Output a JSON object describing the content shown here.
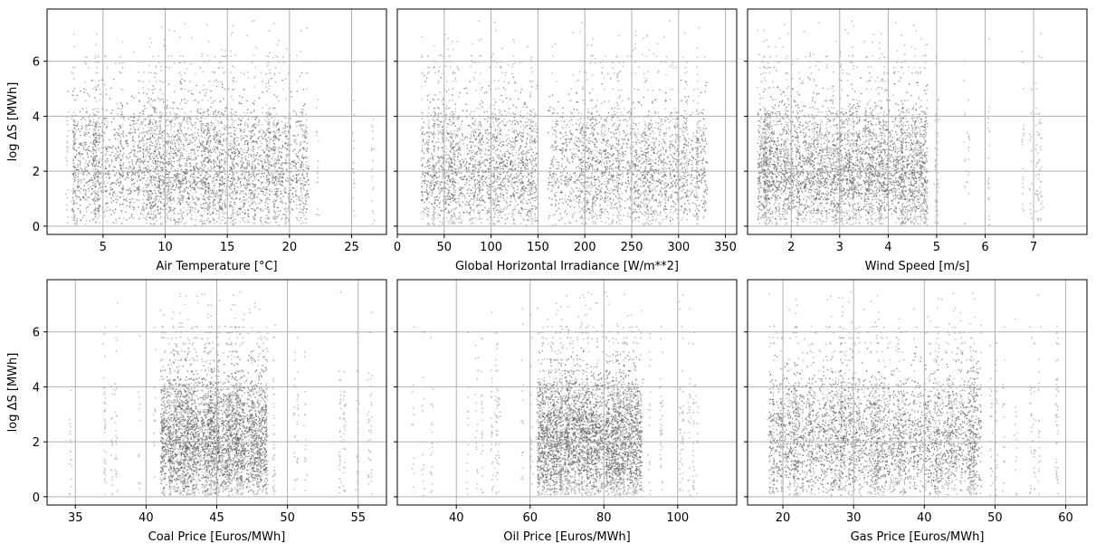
{
  "chart_data": [
    {
      "type": "scatter",
      "xlabel": "Air Temperature [°C]",
      "ylabel": "log ΔS [MWh]",
      "xlim": [
        0.5,
        27.8
      ],
      "ylim": [
        -0.3,
        7.9
      ],
      "xticks": [
        5,
        10,
        15,
        20,
        25
      ],
      "yticks": [
        0,
        2,
        4,
        6
      ],
      "grid": true,
      "point_color": "#000000",
      "x_range": [
        2,
        26.8
      ],
      "dense_x_ranges": [
        [
          2.5,
          21.5
        ]
      ],
      "y_range": [
        0.05,
        7.5
      ]
    },
    {
      "type": "scatter",
      "xlabel": "Global Horizontal Irradiance [W/m**2]",
      "ylabel": "",
      "xlim": [
        0,
        362
      ],
      "ylim": [
        -0.3,
        7.9
      ],
      "xticks": [
        0,
        50,
        100,
        150,
        200,
        250,
        300,
        350
      ],
      "yticks": [
        0,
        2,
        4,
        6
      ],
      "grid": true,
      "point_color": "#000000",
      "x_range": [
        20,
        345
      ],
      "dense_x_ranges": [
        [
          25,
          150
        ],
        [
          160,
          330
        ]
      ],
      "y_range": [
        0.05,
        7.5
      ]
    },
    {
      "type": "scatter",
      "xlabel": "Wind Speed [m/s]",
      "ylabel": "",
      "xlim": [
        1.1,
        8.1
      ],
      "ylim": [
        -0.3,
        7.9
      ],
      "xticks": [
        2,
        3,
        4,
        5,
        6,
        7
      ],
      "yticks": [
        0,
        2,
        4,
        6
      ],
      "grid": true,
      "point_color": "#000000",
      "x_range": [
        1.3,
        7.7
      ],
      "dense_x_ranges": [
        [
          1.3,
          4.8
        ]
      ],
      "y_range": [
        0.05,
        7.5
      ]
    },
    {
      "type": "scatter",
      "xlabel": "Coal Price [Euros/MWh]",
      "ylabel": "log ΔS [MWh]",
      "xlim": [
        33,
        57
      ],
      "ylim": [
        -0.3,
        7.9
      ],
      "xticks": [
        35,
        40,
        45,
        50,
        55
      ],
      "yticks": [
        0,
        2,
        4,
        6
      ],
      "grid": true,
      "point_color": "#000000",
      "x_range": [
        34,
        56
      ],
      "dense_x_ranges": [
        [
          41,
          48.5
        ]
      ],
      "y_range": [
        0.05,
        7.5
      ]
    },
    {
      "type": "scatter",
      "xlabel": "Oil Price [Euros/MWh]",
      "ylabel": "",
      "xlim": [
        24,
        116
      ],
      "ylim": [
        -0.3,
        7.9
      ],
      "xticks": [
        40,
        60,
        80,
        100
      ],
      "yticks": [
        0,
        2,
        4,
        6
      ],
      "grid": true,
      "point_color": "#000000",
      "x_range": [
        28,
        112
      ],
      "dense_x_ranges": [
        [
          62,
          90
        ]
      ],
      "y_range": [
        0.05,
        7.5
      ]
    },
    {
      "type": "scatter",
      "xlabel": "Gas Price [Euros/MWh]",
      "ylabel": "",
      "xlim": [
        15,
        63
      ],
      "ylim": [
        -0.3,
        7.9
      ],
      "xticks": [
        20,
        30,
        40,
        50,
        60
      ],
      "yticks": [
        0,
        2,
        4,
        6
      ],
      "grid": true,
      "point_color": "#000000",
      "x_range": [
        17,
        60
      ],
      "dense_x_ranges": [
        [
          18,
          48
        ]
      ],
      "y_range": [
        0.05,
        7.5
      ]
    }
  ]
}
